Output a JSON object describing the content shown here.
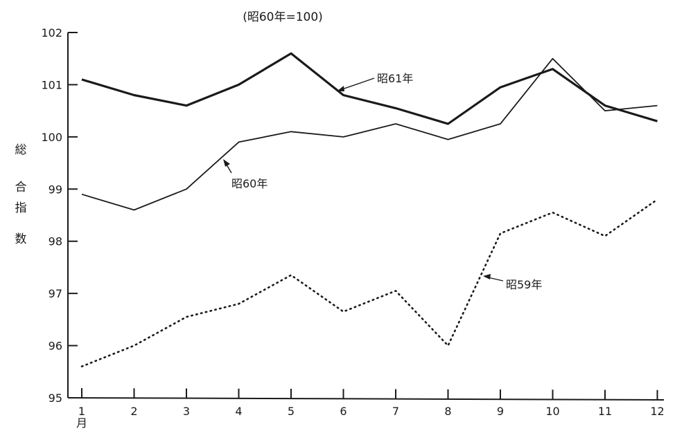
{
  "chart_data": {
    "type": "line",
    "title": "",
    "subtitle": "(昭60年=100)",
    "ylabel": "総合指数",
    "xlabel": "",
    "x_unit": "月",
    "categories": [
      "1",
      "2",
      "3",
      "4",
      "5",
      "6",
      "7",
      "8",
      "9",
      "10",
      "11",
      "12"
    ],
    "ylim": [
      95,
      102
    ],
    "yticks": [
      "95",
      "96",
      "97",
      "98",
      "99",
      "100",
      "101",
      "102"
    ],
    "grid": false,
    "legend": "none",
    "series": [
      {
        "name": "昭61年",
        "style": "thick-solid",
        "color": "#1a1a1a",
        "values": [
          101.1,
          100.8,
          100.6,
          101.0,
          101.6,
          100.8,
          100.55,
          100.25,
          100.95,
          101.3,
          100.6,
          100.3
        ]
      },
      {
        "name": "昭60年",
        "style": "thin-solid",
        "color": "#1a1a1a",
        "values": [
          98.9,
          98.6,
          99.0,
          99.9,
          100.1,
          100.0,
          100.25,
          99.95,
          100.25,
          101.5,
          100.5,
          100.6
        ]
      },
      {
        "name": "昭59年",
        "style": "dotted",
        "color": "#1a1a1a",
        "values": [
          95.6,
          96.0,
          96.55,
          96.8,
          97.35,
          96.65,
          97.05,
          96.0,
          98.15,
          98.55,
          98.1,
          98.8
        ]
      }
    ]
  }
}
